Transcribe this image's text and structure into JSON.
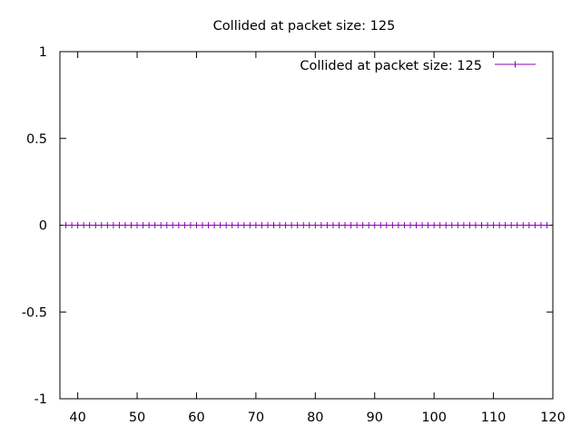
{
  "chart_data": {
    "type": "line",
    "title": "Collided at packet size: 125",
    "xlabel": "",
    "ylabel": "",
    "xlim": [
      37,
      120
    ],
    "ylim": [
      -1,
      1
    ],
    "x_ticks": [
      40,
      50,
      60,
      70,
      80,
      90,
      100,
      110,
      120
    ],
    "y_ticks": [
      1,
      0.5,
      0,
      -0.5,
      -1
    ],
    "grid": false,
    "legend_position": "top-right",
    "series": [
      {
        "name": "Collided at packet size: 125",
        "color": "#8B00B4",
        "marker": "plus",
        "x": [
          38,
          39,
          40,
          41,
          42,
          43,
          44,
          45,
          46,
          47,
          48,
          49,
          50,
          51,
          52,
          53,
          54,
          55,
          56,
          57,
          58,
          59,
          60,
          61,
          62,
          63,
          64,
          65,
          66,
          67,
          68,
          69,
          70,
          71,
          72,
          73,
          74,
          75,
          76,
          77,
          78,
          79,
          80,
          81,
          82,
          83,
          84,
          85,
          86,
          87,
          88,
          89,
          90,
          91,
          92,
          93,
          94,
          95,
          96,
          97,
          98,
          99,
          100,
          101,
          102,
          103,
          104,
          105,
          106,
          107,
          108,
          109,
          110,
          111,
          112,
          113,
          114,
          115,
          116,
          117,
          118,
          119
        ],
        "y": [
          0,
          0,
          0,
          0,
          0,
          0,
          0,
          0,
          0,
          0,
          0,
          0,
          0,
          0,
          0,
          0,
          0,
          0,
          0,
          0,
          0,
          0,
          0,
          0,
          0,
          0,
          0,
          0,
          0,
          0,
          0,
          0,
          0,
          0,
          0,
          0,
          0,
          0,
          0,
          0,
          0,
          0,
          0,
          0,
          0,
          0,
          0,
          0,
          0,
          0,
          0,
          0,
          0,
          0,
          0,
          0,
          0,
          0,
          0,
          0,
          0,
          0,
          0,
          0,
          0,
          0,
          0,
          0,
          0,
          0,
          0,
          0,
          0,
          0,
          0,
          0,
          0,
          0,
          0,
          0,
          0,
          0
        ]
      }
    ]
  }
}
